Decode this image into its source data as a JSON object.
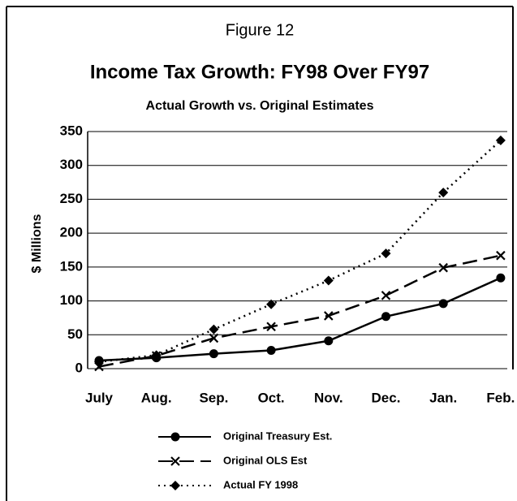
{
  "chart_data": {
    "type": "line",
    "figure_label": "Figure 12",
    "title": "Income Tax Growth:  FY98 Over FY97",
    "subtitle": "Actual Growth vs. Original Estimates",
    "y_label": "$ Millions",
    "categories": [
      "July",
      "Aug.",
      "Sep.",
      "Oct.",
      "Nov.",
      "Dec.",
      "Jan.",
      "Feb."
    ],
    "series": [
      {
        "name": "Original Treasury Est.",
        "color": "#000000",
        "dash": "solid",
        "marker": "circle",
        "values": [
          12,
          16,
          22,
          27,
          41,
          77,
          96,
          134
        ]
      },
      {
        "name": "Original OLS Est",
        "color": "#000000",
        "dash": "long-dash",
        "marker": "x",
        "values": [
          3,
          19,
          45,
          62,
          78,
          108,
          149,
          167
        ]
      },
      {
        "name": "Actual FY 1998",
        "color": "#000000",
        "dash": "dotted",
        "marker": "diamond",
        "values": [
          10,
          20,
          58,
          95,
          130,
          170,
          260,
          337
        ]
      }
    ],
    "ylim": [
      0,
      350
    ],
    "yticks": [
      0,
      50,
      100,
      150,
      200,
      250,
      300,
      350
    ],
    "grid": true,
    "legend": "bottom"
  }
}
